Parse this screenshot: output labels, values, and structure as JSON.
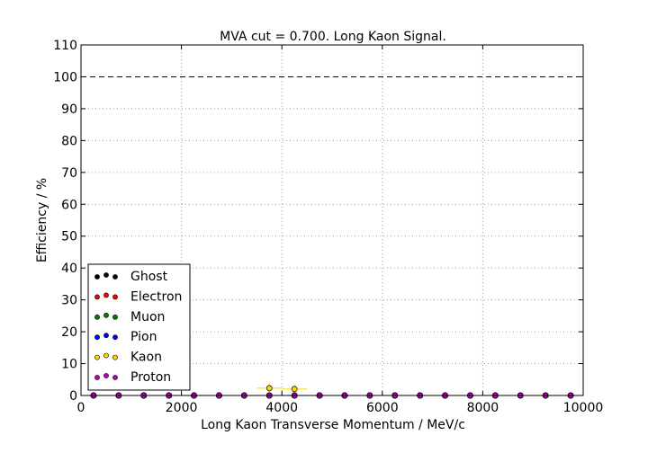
{
  "chart_data": {
    "type": "scatter",
    "title": "MVA cut = 0.700. Long Kaon Signal.",
    "xlabel": "Long Kaon Transverse Momentum / MeV/c",
    "ylabel": "Efficiency / %",
    "xlim": [
      0,
      10000
    ],
    "ylim": [
      0,
      110
    ],
    "xticks": [
      "0",
      "2000",
      "4000",
      "6000",
      "8000",
      "10000"
    ],
    "yticks": [
      "0",
      "10",
      "20",
      "30",
      "40",
      "50",
      "60",
      "70",
      "80",
      "90",
      "100",
      "110"
    ],
    "grid": true,
    "reference_line": 100,
    "legend_position": "lower-left",
    "x": [
      250,
      750,
      1250,
      1750,
      2250,
      2750,
      3250,
      3750,
      4250,
      4750,
      5250,
      5750,
      6250,
      6750,
      7250,
      7750,
      8250,
      8750,
      9250,
      9750
    ],
    "x_error": 250,
    "series": [
      {
        "name": "Ghost",
        "color": "#000000",
        "values": [
          0,
          0,
          0,
          0,
          0,
          0,
          0,
          0,
          0,
          0,
          0,
          0,
          0,
          0,
          0,
          0,
          0,
          0,
          0,
          0
        ]
      },
      {
        "name": "Electron",
        "color": "#ff0000",
        "values": [
          0,
          0,
          0,
          0,
          0,
          0,
          0,
          0,
          0,
          0,
          0,
          0,
          0,
          0,
          0,
          0,
          0,
          0,
          0,
          0
        ]
      },
      {
        "name": "Muon",
        "color": "#008000",
        "values": [
          0,
          0,
          0,
          0,
          0,
          0,
          0,
          0,
          0,
          0,
          0,
          0,
          0,
          0,
          0,
          0,
          0,
          0,
          0,
          0
        ]
      },
      {
        "name": "Pion",
        "color": "#0000ff",
        "values": [
          0,
          0,
          0,
          0,
          0,
          0,
          0,
          0,
          0,
          0,
          0,
          0,
          0,
          0,
          0,
          0,
          0,
          0,
          0,
          0
        ]
      },
      {
        "name": "Kaon",
        "color": "#ffd700",
        "values": [
          0,
          0,
          0,
          0,
          0,
          0,
          0,
          2.3,
          2.0,
          0,
          0,
          0,
          0,
          0,
          0,
          0,
          0,
          0,
          0,
          0
        ],
        "y_error": [
          0,
          0,
          0,
          0,
          0,
          0,
          0,
          1.6,
          1.4,
          0,
          0,
          0,
          0,
          0,
          0,
          0,
          0,
          0,
          0,
          0
        ]
      },
      {
        "name": "Proton",
        "color": "#bf00bf",
        "values": [
          0,
          0,
          0,
          0,
          0,
          0,
          0,
          0,
          0,
          0,
          0,
          0,
          0,
          0,
          0,
          0,
          0,
          0,
          0,
          0
        ]
      }
    ]
  }
}
